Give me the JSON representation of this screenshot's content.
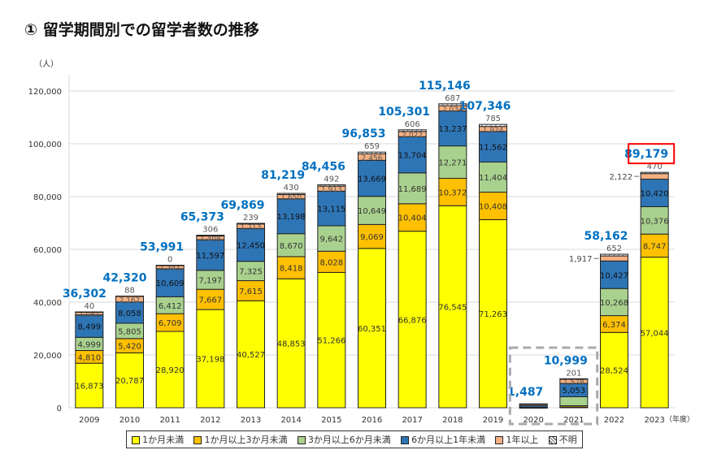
{
  "title": "① 留学期間別での留学者数の推移",
  "chart_data": {
    "type": "bar",
    "stacked": true,
    "ylabel": "（人）",
    "xlabel": "（年度）",
    "ylim": [
      0,
      120000
    ],
    "yticks": [
      0,
      20000,
      40000,
      60000,
      80000,
      100000,
      120000
    ],
    "ytick_labels": [
      "0",
      "20,000",
      "40,000",
      "60,000",
      "80,000",
      "100,000",
      "120,000"
    ],
    "grid": true,
    "legend": "bottom",
    "categories": [
      "2009",
      "2010",
      "2011",
      "2012",
      "2013",
      "2014",
      "2015",
      "2016",
      "2017",
      "2018",
      "2019",
      "2020",
      "2021",
      "2022",
      "2023"
    ],
    "series": [
      {
        "name": "1か月未満",
        "color": "#FFFF00",
        "values": [
          16873,
          20787,
          28920,
          37198,
          40527,
          48853,
          51266,
          60351,
          66876,
          76545,
          71263,
          19,
          300,
          28524,
          57044
        ]
      },
      {
        "name": "1か月以上3か月未満",
        "color": "#FFC000",
        "values": [
          4810,
          5420,
          6709,
          7667,
          7615,
          8418,
          8028,
          9069,
          10404,
          10372,
          10408,
          24,
          472,
          6374,
          8747
        ]
      },
      {
        "name": "3か月以上6か月未満",
        "color": "#A9D18E",
        "values": [
          4999,
          5805,
          6412,
          7197,
          7325,
          8670,
          9642,
          10649,
          11689,
          12271,
          11404,
          161,
          3395,
          10268,
          10376
        ]
      },
      {
        "name": "6か月以上1年未満",
        "color": "#2E75B6",
        "values": [
          8499,
          8058,
          10609,
          11597,
          12450,
          13198,
          13115,
          13669,
          13704,
          13237,
          11562,
          656,
          5053,
          10427,
          10420
        ]
      },
      {
        "name": "1年以上",
        "color": "#F4B183",
        "values": [
          1081,
          2162,
          1341,
          1408,
          1713,
          1650,
          1913,
          2456,
          2022,
          2034,
          1924,
          477,
          1578,
          1917,
          2122
        ]
      },
      {
        "name": "不明",
        "color": "#FFFFFF",
        "values": [
          40,
          88,
          0,
          306,
          239,
          430,
          492,
          659,
          606,
          687,
          785,
          150,
          201,
          652,
          470
        ]
      }
    ],
    "totals": [
      36302,
      42320,
      53991,
      65373,
      69869,
      81219,
      84456,
      96853,
      105301,
      115146,
      107346,
      1487,
      10999,
      58162,
      89179
    ],
    "total_labels": [
      "36,302",
      "42,320",
      "53,991",
      "65,373",
      "69,869",
      "81,219",
      "84,456",
      "96,853",
      "105,301",
      "115,146",
      "107,346",
      "1,487",
      "10,999",
      "58,162",
      "89,179"
    ],
    "highlight": {
      "category": "2023",
      "color": "#FF0000"
    },
    "dashed_box_categories": [
      "2020",
      "2021"
    ]
  }
}
